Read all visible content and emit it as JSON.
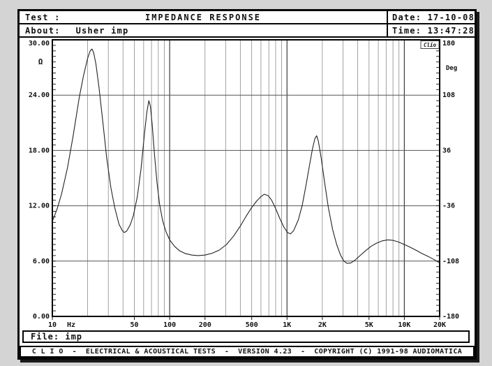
{
  "header": {
    "test_label": "Test :",
    "title": "IMPEDANCE RESPONSE",
    "date_label": "Date: ",
    "date_value": "17-10-08",
    "about_label": "About:",
    "about_value": "Usher imp",
    "time_label": "Time: ",
    "time_value": "13:47:28"
  },
  "footer": {
    "file_label": "File: ",
    "file_value": "imp",
    "status_bar": "C L I O  -  ELECTRICAL & ACOUSTICAL TESTS  -  VERSION 4.23  -  COPYRIGHT (C) 1991-98 AUDIOMATICA"
  },
  "chart_data": {
    "type": "line",
    "title": "IMPEDANCE RESPONSE",
    "badge": "Clio",
    "grid": "log-minor-verticals-and-major-horizontals",
    "colors": {
      "frame": "#000000",
      "grid_minor": "#8a8a8a",
      "grid_major": "#3c3c3c",
      "grid_horizontal": "#555555",
      "curve": "#222222"
    },
    "x_axis": {
      "scale": "log",
      "unit": "Hz",
      "min": 10,
      "max": 20000,
      "tick_labels": [
        {
          "label": "10",
          "f": 10
        },
        {
          "label": "Hz",
          "f": null
        },
        {
          "label": "50",
          "f": 50
        },
        {
          "label": "100",
          "f": 100
        },
        {
          "label": "200",
          "f": 200
        },
        {
          "label": "500",
          "f": 500
        },
        {
          "label": "1K",
          "f": 1000
        },
        {
          "label": "2K",
          "f": 2000
        },
        {
          "label": "5K",
          "f": 5000
        },
        {
          "label": "10K",
          "f": 10000
        },
        {
          "label": "20K",
          "f": 20000
        }
      ]
    },
    "y_axis_left": {
      "unit": "Ω",
      "min": 0,
      "max": 30,
      "gridlines": [
        6,
        12,
        18,
        24
      ],
      "ticks": [
        {
          "value": 30,
          "label": "30.00"
        },
        {
          "value": 24,
          "label": "24.00"
        },
        {
          "value": 18,
          "label": "18.00"
        },
        {
          "value": 12,
          "label": "12.00"
        },
        {
          "value": 6,
          "label": "6.00"
        },
        {
          "value": 0,
          "label": "0.00"
        }
      ]
    },
    "y_axis_right": {
      "unit": "Deg",
      "min": -180,
      "max": 180,
      "ticks": [
        {
          "value": 180,
          "label": "180"
        },
        {
          "value": 108,
          "label": "108"
        },
        {
          "value": 36,
          "label": "36"
        },
        {
          "value": -36,
          "label": "-36"
        },
        {
          "value": -108,
          "label": "-108"
        },
        {
          "value": -180,
          "label": "-180"
        }
      ]
    },
    "series": [
      {
        "name": "impedance-magnitude",
        "unit": "ohm",
        "points": [
          [
            10,
            10.3
          ],
          [
            11,
            11.7
          ],
          [
            12,
            13.3
          ],
          [
            13.5,
            16.2
          ],
          [
            15,
            19.5
          ],
          [
            17,
            23.8
          ],
          [
            18.5,
            26.2
          ],
          [
            20,
            28.0
          ],
          [
            21,
            28.8
          ],
          [
            21.8,
            29.0
          ],
          [
            22.5,
            28.6
          ],
          [
            23.5,
            27.4
          ],
          [
            25,
            24.8
          ],
          [
            27,
            21.0
          ],
          [
            29,
            17.3
          ],
          [
            31.5,
            14.0
          ],
          [
            34,
            11.8
          ],
          [
            37,
            10.0
          ],
          [
            39.5,
            9.3
          ],
          [
            41,
            9.1
          ],
          [
            43,
            9.25
          ],
          [
            46,
            9.9
          ],
          [
            49,
            10.9
          ],
          [
            53,
            13.0
          ],
          [
            57,
            16.0
          ],
          [
            61,
            19.8
          ],
          [
            64,
            22.2
          ],
          [
            66.5,
            23.4
          ],
          [
            68.5,
            22.8
          ],
          [
            71,
            20.8
          ],
          [
            74,
            17.8
          ],
          [
            78,
            14.5
          ],
          [
            82,
            12.2
          ],
          [
            87,
            10.4
          ],
          [
            93,
            9.2
          ],
          [
            100,
            8.3
          ],
          [
            110,
            7.6
          ],
          [
            122,
            7.1
          ],
          [
            137,
            6.8
          ],
          [
            155,
            6.65
          ],
          [
            175,
            6.6
          ],
          [
            200,
            6.65
          ],
          [
            230,
            6.85
          ],
          [
            265,
            7.2
          ],
          [
            305,
            7.8
          ],
          [
            350,
            8.7
          ],
          [
            400,
            9.8
          ],
          [
            450,
            10.9
          ],
          [
            500,
            11.8
          ],
          [
            550,
            12.5
          ],
          [
            600,
            13.0
          ],
          [
            640,
            13.25
          ],
          [
            690,
            13.1
          ],
          [
            740,
            12.6
          ],
          [
            800,
            11.7
          ],
          [
            870,
            10.6
          ],
          [
            940,
            9.7
          ],
          [
            1010,
            9.1
          ],
          [
            1070,
            8.95
          ],
          [
            1140,
            9.3
          ],
          [
            1250,
            10.5
          ],
          [
            1350,
            12.1
          ],
          [
            1450,
            14.2
          ],
          [
            1550,
            16.3
          ],
          [
            1650,
            18.2
          ],
          [
            1730,
            19.3
          ],
          [
            1790,
            19.6
          ],
          [
            1850,
            19.0
          ],
          [
            1950,
            17.3
          ],
          [
            2100,
            14.4
          ],
          [
            2250,
            11.8
          ],
          [
            2450,
            9.4
          ],
          [
            2650,
            7.8
          ],
          [
            2850,
            6.7
          ],
          [
            3050,
            6.0
          ],
          [
            3250,
            5.75
          ],
          [
            3500,
            5.8
          ],
          [
            3800,
            6.1
          ],
          [
            4200,
            6.6
          ],
          [
            4700,
            7.15
          ],
          [
            5200,
            7.6
          ],
          [
            5800,
            7.95
          ],
          [
            6500,
            8.2
          ],
          [
            7200,
            8.3
          ],
          [
            8000,
            8.25
          ],
          [
            8800,
            8.1
          ],
          [
            9800,
            7.85
          ],
          [
            11000,
            7.55
          ],
          [
            12500,
            7.2
          ],
          [
            14000,
            6.85
          ],
          [
            16000,
            6.5
          ],
          [
            18000,
            6.15
          ],
          [
            20000,
            5.8
          ]
        ]
      }
    ]
  }
}
